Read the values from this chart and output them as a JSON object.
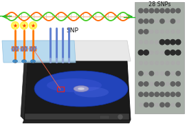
{
  "fig_width": 2.72,
  "fig_height": 1.89,
  "dpi": 100,
  "bg_color": "#ffffff",
  "snp_label": "SNP",
  "snps_label": "28 SNPs",
  "dna_helix_color_orange": "#ff6600",
  "dna_helix_color_green": "#44cc22",
  "dna_link_color": "#dddddd",
  "probe_orange": "#ff7700",
  "bar_blue": "#5577cc",
  "dvd_blue": "#2244bb",
  "dvd_sheen": "#4466dd",
  "drive_dark": "#1a1a1a",
  "drive_mid": "#333333",
  "tray_white": "#e0e0e0",
  "platform_blue": "#add8e6",
  "dot_dark": "#2a2a2a",
  "dot_med": "#606060",
  "dot_light": "#aaaaaa",
  "array_bg": "#a8b0a8",
  "star_yellow": "#ffdd00",
  "star_red": "#ff3300",
  "arrow_green": "#22bb22",
  "red_rect": "#dd2222",
  "laser_red": "#ff6644",
  "microarray_dots": [
    [
      1,
      1,
      1,
      1,
      1,
      1,
      1,
      1
    ],
    [
      1,
      1,
      1,
      0,
      1,
      0,
      1,
      0
    ],
    [
      1,
      1,
      0,
      0,
      0,
      0,
      0,
      0
    ],
    [
      0,
      0,
      0,
      0,
      2,
      2,
      2,
      2
    ],
    [
      2,
      2,
      0,
      0,
      0,
      2,
      2,
      2
    ],
    [
      0,
      0,
      0,
      0,
      0,
      0,
      0,
      0
    ],
    [
      1,
      0,
      1,
      0,
      0,
      1,
      0,
      1
    ],
    [
      1,
      1,
      0,
      1,
      1,
      0,
      1,
      1
    ],
    [
      1,
      1,
      1,
      1,
      1,
      1,
      1,
      1
    ],
    [
      0,
      1,
      1,
      0,
      1,
      1,
      0,
      1
    ]
  ]
}
